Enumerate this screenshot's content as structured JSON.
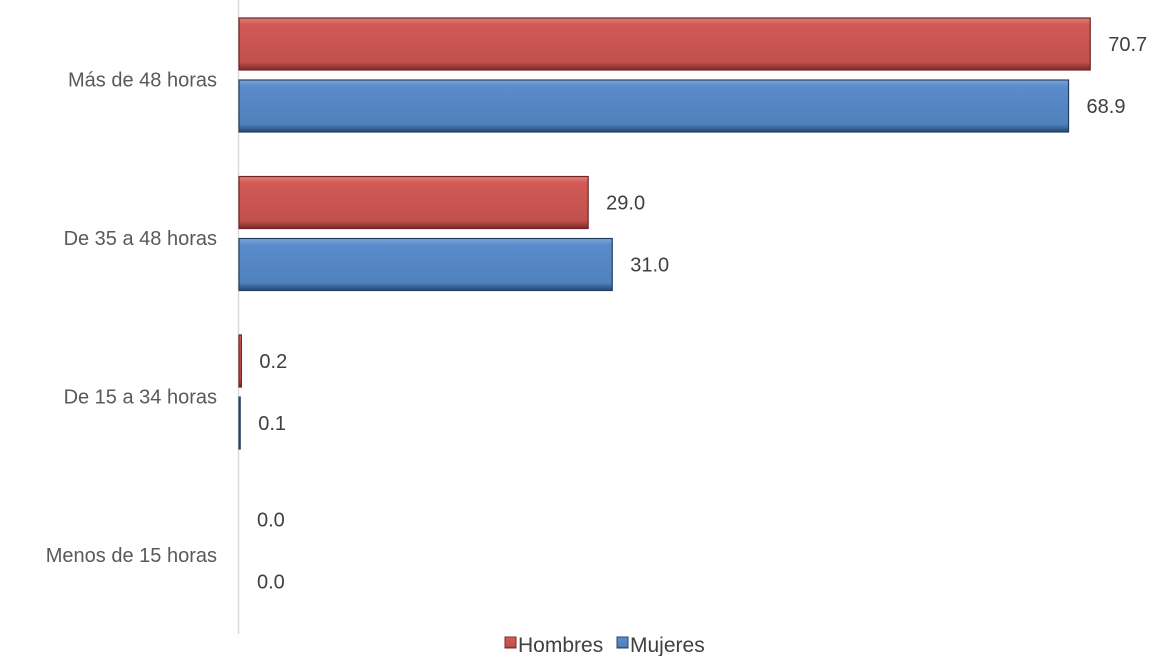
{
  "chart_data": {
    "type": "bar",
    "orientation": "horizontal",
    "categories": [
      "Más de 48 horas",
      "De 35 a 48 horas",
      "De 15 a 34 horas",
      "Menos de 15 horas"
    ],
    "series": [
      {
        "name": "Hombres",
        "values": [
          70.7,
          29.0,
          0.2,
          0.0
        ],
        "labels": [
          "70.7",
          "29.0",
          "0.2",
          "0.0"
        ],
        "color": "#C0504D"
      },
      {
        "name": "Mujeres",
        "values": [
          68.9,
          31.0,
          0.1,
          0.0
        ],
        "labels": [
          "68.9",
          "31.0",
          "0.1",
          "0.0"
        ],
        "color": "#4F81BD"
      }
    ],
    "xlim": [
      0,
      75
    ],
    "grid": false,
    "legend": "bottom"
  }
}
